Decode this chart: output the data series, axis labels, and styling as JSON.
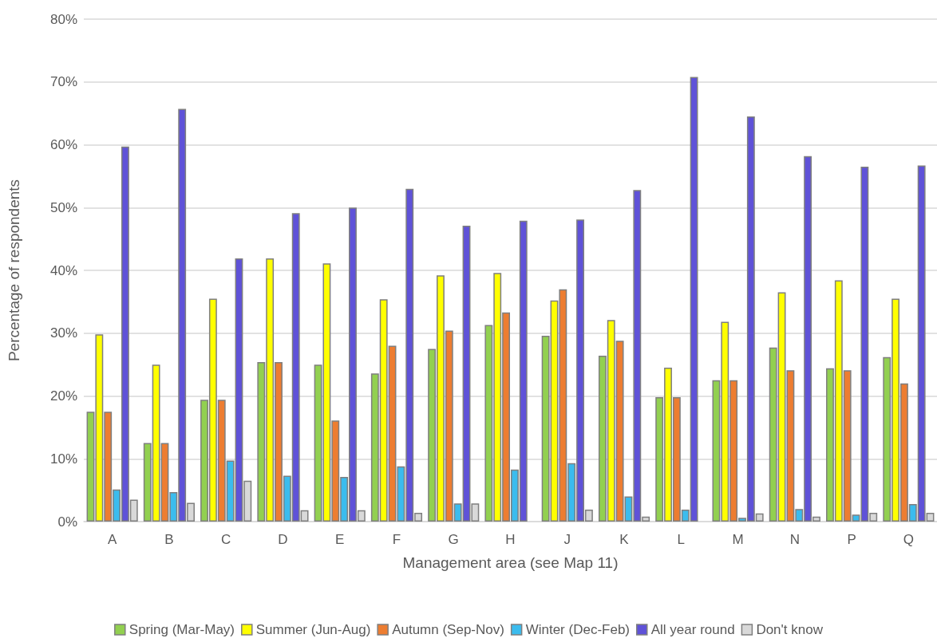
{
  "chart_data": {
    "type": "bar",
    "xlabel": "Management area (see Map 11)",
    "ylabel": "Percentage of respondents",
    "categories": [
      "A",
      "B",
      "C",
      "D",
      "E",
      "F",
      "G",
      "H",
      "J",
      "K",
      "L",
      "M",
      "N",
      "P",
      "Q"
    ],
    "series": [
      {
        "name": "Spring (Mar-May)",
        "color": "#92d050",
        "values": [
          17.5,
          12.5,
          19.4,
          25.4,
          25.0,
          23.6,
          27.5,
          31.3,
          29.6,
          26.4,
          19.8,
          22.5,
          27.7,
          24.4,
          26.2
        ]
      },
      {
        "name": "Summer (Jun-Aug)",
        "color": "#ffff00",
        "values": [
          29.8,
          25.0,
          35.5,
          41.9,
          41.1,
          35.4,
          39.2,
          39.6,
          35.2,
          32.1,
          24.5,
          31.8,
          36.5,
          38.4,
          35.5
        ]
      },
      {
        "name": "Autumn (Sep-Nov)",
        "color": "#ed7d31",
        "values": [
          17.5,
          12.5,
          19.4,
          25.4,
          16.1,
          28.0,
          30.4,
          33.3,
          37.0,
          28.8,
          19.8,
          22.5,
          24.1,
          24.1,
          22.0
        ]
      },
      {
        "name": "Winter (Dec-Feb)",
        "color": "#3bbcee",
        "values": [
          5.1,
          4.7,
          9.7,
          7.3,
          7.1,
          8.8,
          2.9,
          8.3,
          9.3,
          4.0,
          1.9,
          0.6,
          2.0,
          1.1,
          2.8
        ]
      },
      {
        "name": "All year round",
        "color": "#5f52d8",
        "values": [
          59.7,
          65.7,
          41.9,
          49.1,
          50.0,
          53.0,
          47.1,
          47.9,
          48.1,
          52.8,
          70.8,
          64.5,
          58.2,
          56.5,
          56.7
        ]
      },
      {
        "name": "Don't know",
        "color": "#d9d9d9",
        "values": [
          3.5,
          3.0,
          6.5,
          1.8,
          1.8,
          1.4,
          2.9,
          null,
          1.9,
          0.8,
          null,
          1.3,
          0.8,
          1.4,
          1.4
        ]
      }
    ],
    "ylim": [
      0,
      80
    ],
    "yticks": [
      {
        "value": 0,
        "label": "0%"
      },
      {
        "value": 10,
        "label": "10%"
      },
      {
        "value": 20,
        "label": "20%"
      },
      {
        "value": 30,
        "label": "30%"
      },
      {
        "value": 40,
        "label": "40%"
      },
      {
        "value": 50,
        "label": "50%"
      },
      {
        "value": 60,
        "label": "60%"
      },
      {
        "value": 70,
        "label": "70%"
      },
      {
        "value": 80,
        "label": "80%"
      }
    ],
    "grid": "y",
    "legend": "bottom"
  }
}
